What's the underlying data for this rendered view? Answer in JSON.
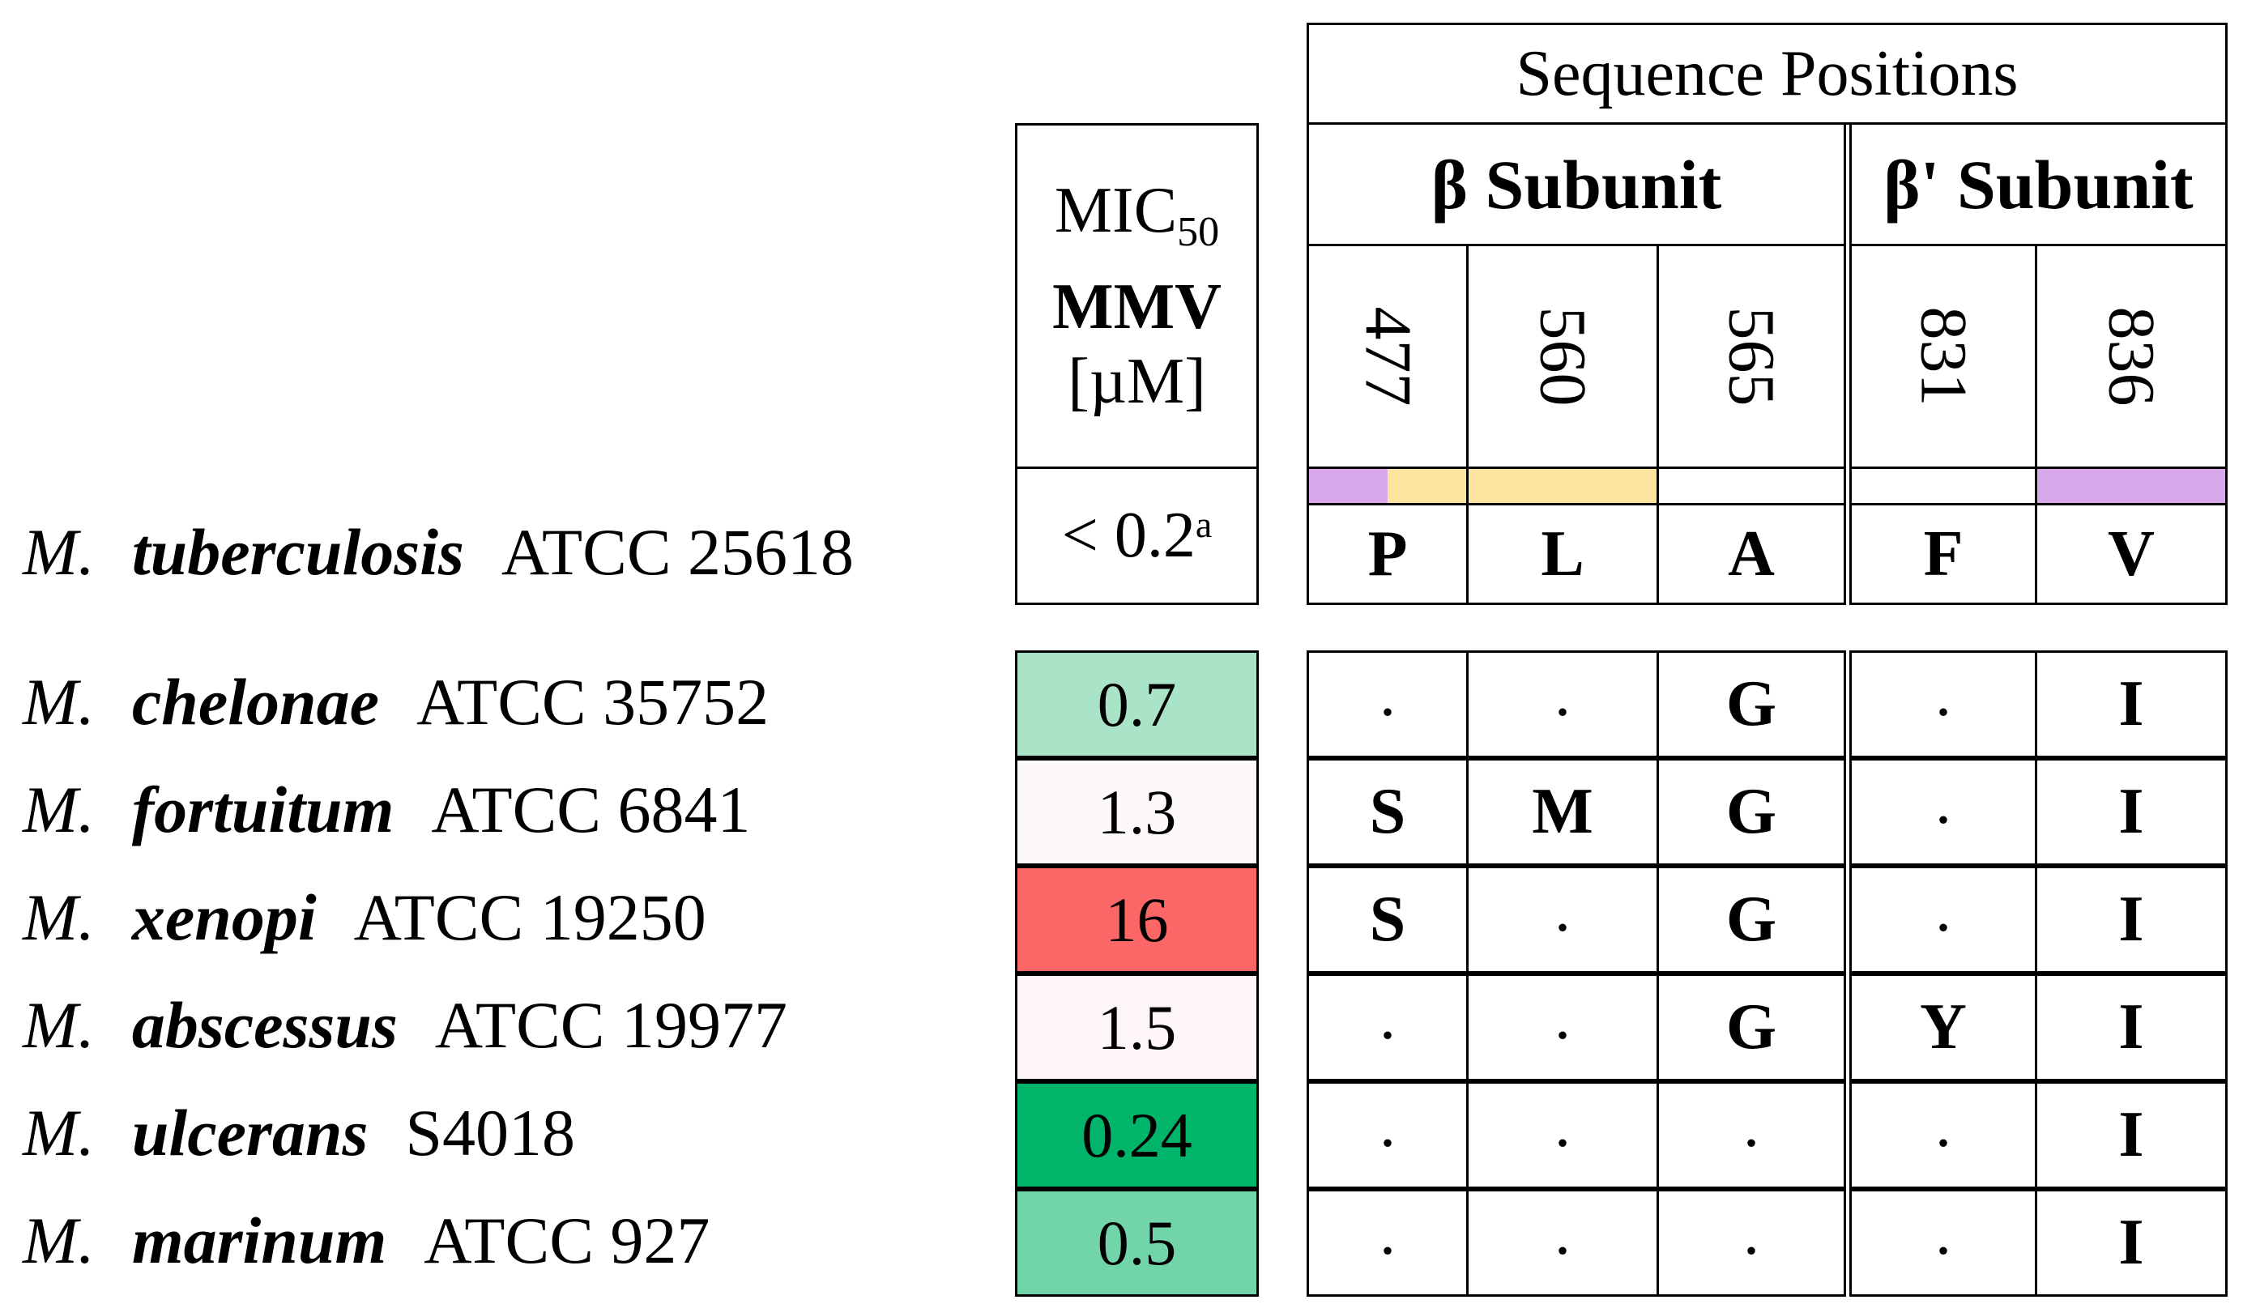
{
  "mic_header": {
    "line1": "MIC",
    "line1_sub": "50",
    "line2": "MMV",
    "line3": "[µM]"
  },
  "sequence_header": "Sequence Positions",
  "subunits": {
    "beta": "β Subunit",
    "beta_prime": "β' Subunit"
  },
  "positions": [
    "477",
    "560",
    "565",
    "831",
    "836"
  ],
  "reference": {
    "genus": "M.",
    "species": "tuberculosis",
    "strain": "ATCC 25618",
    "mic": "< 0.2",
    "mic_note": "a",
    "residues": [
      "P",
      "L",
      "A",
      "F",
      "V"
    ]
  },
  "highlight_colors": {
    "purple": "#d9a8ea",
    "yellow": "#fde49e"
  },
  "rows": [
    {
      "genus": "M.",
      "species": "chelonae",
      "strain": "ATCC 35752",
      "mic": "0.7",
      "color": "#a9e4c9",
      "residues": [
        ".",
        ".",
        "G",
        ".",
        "I"
      ]
    },
    {
      "genus": "M.",
      "species": "fortuitum",
      "strain": "ATCC 6841",
      "mic": "1.3",
      "color": "#fcf8fb",
      "residues": [
        "S",
        "M",
        "G",
        ".",
        "I"
      ]
    },
    {
      "genus": "M.",
      "species": "xenopi",
      "strain": "ATCC 19250",
      "mic": "16",
      "color": "#fb6666",
      "residues": [
        "S",
        ".",
        "G",
        ".",
        "I"
      ]
    },
    {
      "genus": "M.",
      "species": "abscessus",
      "strain": "ATCC 19977",
      "mic": "1.5",
      "color": "#fdf5f9",
      "residues": [
        ".",
        ".",
        "G",
        "Y",
        "I"
      ]
    },
    {
      "genus": "M.",
      "species": "ulcerans",
      "strain": "S4018",
      "mic": "0.24",
      "color": "#00b46a",
      "residues": [
        ".",
        ".",
        ".",
        ".",
        "I"
      ]
    },
    {
      "genus": "M.",
      "species": "marinum",
      "strain": "ATCC 927",
      "mic": "0.5",
      "color": "#72d5a9",
      "residues": [
        ".",
        ".",
        ".",
        ".",
        "I"
      ]
    }
  ]
}
